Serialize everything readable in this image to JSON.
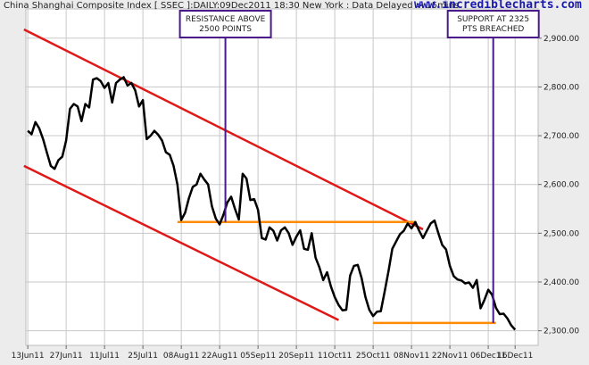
{
  "chart_data": {
    "type": "line",
    "title": "China Shanghai Composite Index [ SSEC ]:DAILY:09Dec2011 18:30 New York : Data Delayed > 15mins",
    "site_label": "www.incrediblecharts.com",
    "xlabel": "",
    "ylabel": "",
    "ylim": [
      2270,
      2960
    ],
    "y_ticks": [
      "2,300.00",
      "2,400.00",
      "2,500.00",
      "2,600.00",
      "2,700.00",
      "2,800.00",
      "2,900.00"
    ],
    "y_tick_values": [
      2300,
      2400,
      2500,
      2600,
      2700,
      2800,
      2900
    ],
    "x_tick_labels": [
      "13Jun11",
      "27Jun11",
      "11Jul11",
      "25Jul11",
      "08Aug11",
      "22Aug11",
      "05Sep11",
      "20Sep11",
      "11Oct11",
      "25Oct11",
      "08Nov11",
      "22Nov11",
      "06Dec11",
      "16Dec11"
    ],
    "x_day_index": [
      0,
      10,
      20,
      30,
      40,
      50,
      60,
      70,
      80,
      90,
      100,
      110,
      120,
      127
    ],
    "x_range": [
      -0.5,
      133
    ],
    "grid": true,
    "series": [
      {
        "values": [
          [
            0,
            2710
          ],
          [
            1,
            2703
          ],
          [
            2,
            2728
          ],
          [
            3,
            2715
          ],
          [
            4,
            2693
          ],
          [
            5,
            2665
          ],
          [
            6,
            2638
          ],
          [
            7,
            2632
          ],
          [
            8,
            2650
          ],
          [
            9,
            2657
          ],
          [
            10,
            2690
          ],
          [
            11,
            2755
          ],
          [
            12,
            2765
          ],
          [
            13,
            2760
          ],
          [
            14,
            2730
          ],
          [
            15,
            2765
          ],
          [
            16,
            2758
          ],
          [
            17,
            2815
          ],
          [
            18,
            2818
          ],
          [
            19,
            2812
          ],
          [
            20,
            2798
          ],
          [
            21,
            2808
          ],
          [
            22,
            2768
          ],
          [
            23,
            2808
          ],
          [
            24,
            2815
          ],
          [
            25,
            2820
          ],
          [
            26,
            2803
          ],
          [
            27,
            2808
          ],
          [
            28,
            2793
          ],
          [
            29,
            2760
          ],
          [
            30,
            2773
          ],
          [
            31,
            2693
          ],
          [
            32,
            2700
          ],
          [
            33,
            2710
          ],
          [
            34,
            2702
          ],
          [
            35,
            2690
          ],
          [
            36,
            2666
          ],
          [
            37,
            2661
          ],
          [
            38,
            2638
          ],
          [
            39,
            2600
          ],
          [
            40,
            2527
          ],
          [
            41,
            2542
          ],
          [
            42,
            2572
          ],
          [
            43,
            2595
          ],
          [
            44,
            2600
          ],
          [
            45,
            2622
          ],
          [
            46,
            2610
          ],
          [
            47,
            2600
          ],
          [
            48,
            2555
          ],
          [
            49,
            2530
          ],
          [
            50,
            2518
          ],
          [
            51,
            2538
          ],
          [
            52,
            2563
          ],
          [
            53,
            2575
          ],
          [
            54,
            2550
          ],
          [
            55,
            2528
          ],
          [
            56,
            2622
          ],
          [
            57,
            2612
          ],
          [
            58,
            2568
          ],
          [
            59,
            2570
          ],
          [
            60,
            2548
          ],
          [
            61,
            2490
          ],
          [
            62,
            2487
          ],
          [
            63,
            2512
          ],
          [
            64,
            2505
          ],
          [
            65,
            2485
          ],
          [
            66,
            2506
          ],
          [
            67,
            2512
          ],
          [
            68,
            2500
          ],
          [
            69,
            2476
          ],
          [
            70,
            2493
          ],
          [
            71,
            2506
          ],
          [
            72,
            2468
          ],
          [
            73,
            2466
          ],
          [
            74,
            2500
          ],
          [
            75,
            2450
          ],
          [
            76,
            2430
          ],
          [
            77,
            2404
          ],
          [
            78,
            2420
          ],
          [
            79,
            2391
          ],
          [
            80,
            2369
          ],
          [
            81,
            2353
          ],
          [
            82,
            2342
          ],
          [
            83,
            2343
          ],
          [
            84,
            2413
          ],
          [
            85,
            2433
          ],
          [
            86,
            2435
          ],
          [
            87,
            2408
          ],
          [
            88,
            2369
          ],
          [
            89,
            2343
          ],
          [
            90,
            2330
          ],
          [
            91,
            2339
          ],
          [
            92,
            2340
          ],
          [
            93,
            2380
          ],
          [
            94,
            2422
          ],
          [
            95,
            2468
          ],
          [
            96,
            2483
          ],
          [
            97,
            2498
          ],
          [
            98,
            2505
          ],
          [
            99,
            2520
          ],
          [
            100,
            2510
          ],
          [
            101,
            2523
          ],
          [
            102,
            2505
          ],
          [
            103,
            2490
          ],
          [
            104,
            2505
          ],
          [
            105,
            2520
          ],
          [
            106,
            2526
          ],
          [
            107,
            2500
          ],
          [
            108,
            2476
          ],
          [
            109,
            2467
          ],
          [
            110,
            2433
          ],
          [
            111,
            2412
          ],
          [
            112,
            2405
          ],
          [
            113,
            2403
          ],
          [
            114,
            2397
          ],
          [
            115,
            2399
          ],
          [
            116,
            2388
          ],
          [
            117,
            2404
          ],
          [
            118,
            2346
          ],
          [
            119,
            2363
          ],
          [
            120,
            2384
          ],
          [
            121,
            2374
          ],
          [
            122,
            2347
          ],
          [
            123,
            2334
          ],
          [
            124,
            2335
          ],
          [
            125,
            2325
          ],
          [
            126,
            2311
          ],
          [
            127,
            2302
          ]
        ],
        "color": "#000000"
      }
    ],
    "trendlines": [
      {
        "name": "upper-channel",
        "x": [
          -1,
          103
        ],
        "y": [
          2918,
          2508
        ],
        "color": "#e01818"
      },
      {
        "name": "lower-channel",
        "x": [
          -1,
          81
        ],
        "y": [
          2638,
          2322
        ],
        "color": "#e01818"
      },
      {
        "name": "resistance-2500",
        "x": [
          39,
          101
        ],
        "y": [
          2523,
          2523
        ],
        "color": "#ff8c00"
      },
      {
        "name": "support-2325",
        "x": [
          90,
          122
        ],
        "y": [
          2316,
          2316
        ],
        "color": "#ff8c00"
      }
    ],
    "annotations": [
      {
        "lines": [
          "RESISTANCE ABOVE",
          "2500 POINTS"
        ],
        "anchor_x": 51.5,
        "anchor_y": 2523
      },
      {
        "lines": [
          "SUPPORT AT 2325",
          "PTS BREACHED"
        ],
        "anchor_x": 121.3,
        "anchor_y": 2316
      }
    ]
  },
  "colors": {
    "background": "#ececec",
    "plot_background": "#ffffff",
    "grid": "#c8c8c8",
    "price_line": "#000000",
    "trendline": "#e01818",
    "level_line": "#ff8c00",
    "annotation_border": "#4a1a8a",
    "site_label": "#1a1aaa"
  }
}
